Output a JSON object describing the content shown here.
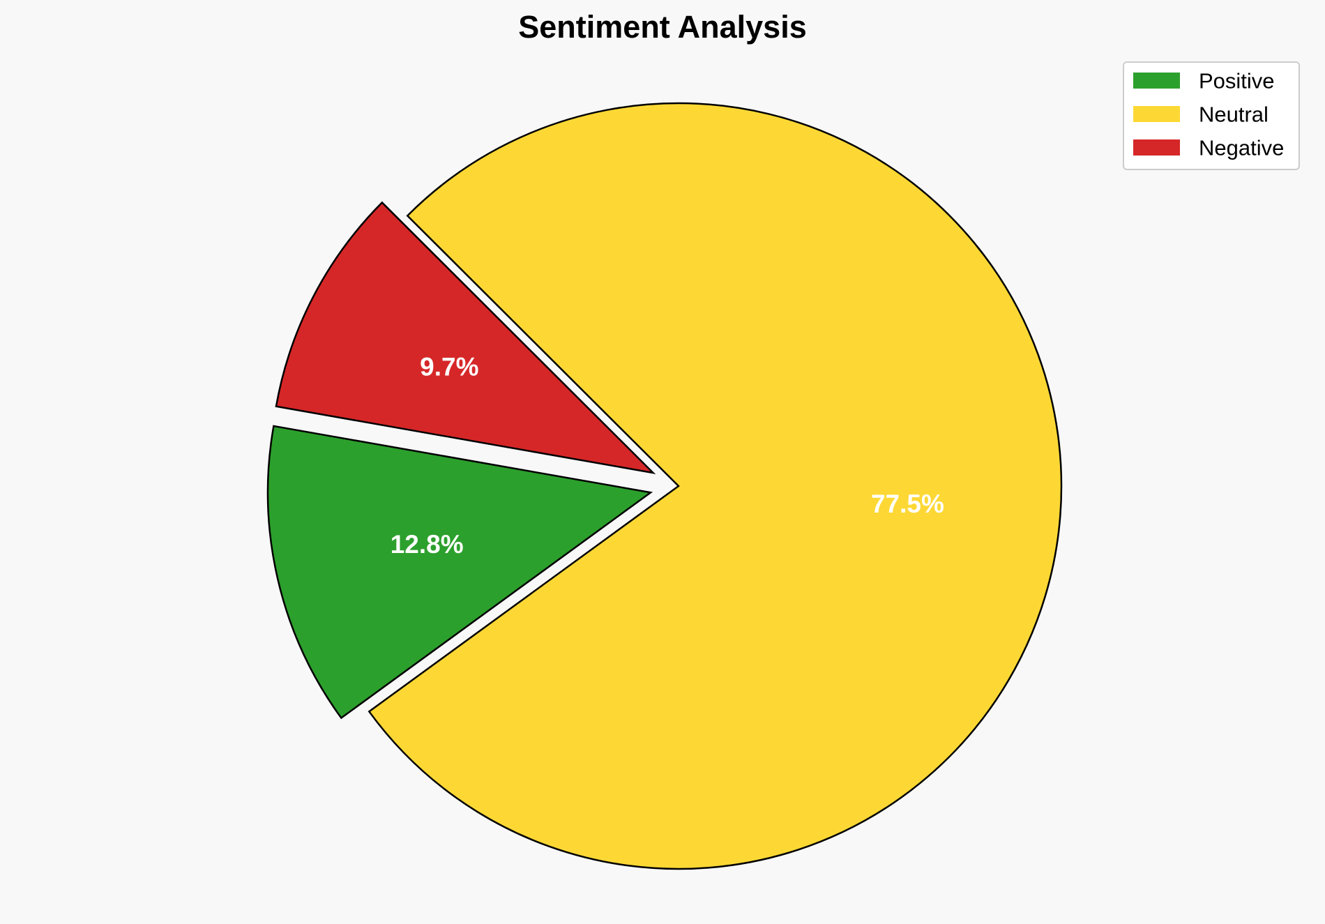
{
  "chart_data": {
    "type": "pie",
    "title": "Sentiment Analysis",
    "categories": [
      "Positive",
      "Neutral",
      "Negative"
    ],
    "values": [
      12.8,
      77.5,
      9.7
    ],
    "labels": [
      "12.8%",
      "77.5%",
      "9.7%"
    ],
    "colors": [
      "#2ca02c",
      "#fdd835",
      "#d62728"
    ],
    "exploded": [
      true,
      false,
      true
    ],
    "legend_position": "top-right",
    "slice_edge_color": "#000000",
    "label_color": "#ffffff"
  }
}
